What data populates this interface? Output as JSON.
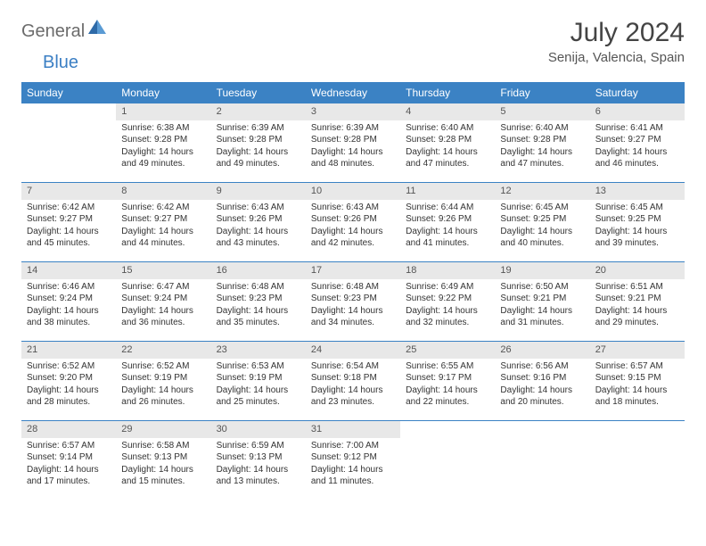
{
  "logo": {
    "part1": "General",
    "part2": "Blue"
  },
  "title": "July 2024",
  "location": "Senija, Valencia, Spain",
  "colors": {
    "header_bg": "#3b82c4",
    "header_fg": "#ffffff",
    "daynum_bg": "#e8e8e8",
    "border": "#3b82c4",
    "text": "#333333",
    "title_color": "#444444"
  },
  "day_headers": [
    "Sunday",
    "Monday",
    "Tuesday",
    "Wednesday",
    "Thursday",
    "Friday",
    "Saturday"
  ],
  "weeks": [
    [
      {
        "num": "",
        "lines": []
      },
      {
        "num": "1",
        "lines": [
          "Sunrise: 6:38 AM",
          "Sunset: 9:28 PM",
          "Daylight: 14 hours",
          "and 49 minutes."
        ]
      },
      {
        "num": "2",
        "lines": [
          "Sunrise: 6:39 AM",
          "Sunset: 9:28 PM",
          "Daylight: 14 hours",
          "and 49 minutes."
        ]
      },
      {
        "num": "3",
        "lines": [
          "Sunrise: 6:39 AM",
          "Sunset: 9:28 PM",
          "Daylight: 14 hours",
          "and 48 minutes."
        ]
      },
      {
        "num": "4",
        "lines": [
          "Sunrise: 6:40 AM",
          "Sunset: 9:28 PM",
          "Daylight: 14 hours",
          "and 47 minutes."
        ]
      },
      {
        "num": "5",
        "lines": [
          "Sunrise: 6:40 AM",
          "Sunset: 9:28 PM",
          "Daylight: 14 hours",
          "and 47 minutes."
        ]
      },
      {
        "num": "6",
        "lines": [
          "Sunrise: 6:41 AM",
          "Sunset: 9:27 PM",
          "Daylight: 14 hours",
          "and 46 minutes."
        ]
      }
    ],
    [
      {
        "num": "7",
        "lines": [
          "Sunrise: 6:42 AM",
          "Sunset: 9:27 PM",
          "Daylight: 14 hours",
          "and 45 minutes."
        ]
      },
      {
        "num": "8",
        "lines": [
          "Sunrise: 6:42 AM",
          "Sunset: 9:27 PM",
          "Daylight: 14 hours",
          "and 44 minutes."
        ]
      },
      {
        "num": "9",
        "lines": [
          "Sunrise: 6:43 AM",
          "Sunset: 9:26 PM",
          "Daylight: 14 hours",
          "and 43 minutes."
        ]
      },
      {
        "num": "10",
        "lines": [
          "Sunrise: 6:43 AM",
          "Sunset: 9:26 PM",
          "Daylight: 14 hours",
          "and 42 minutes."
        ]
      },
      {
        "num": "11",
        "lines": [
          "Sunrise: 6:44 AM",
          "Sunset: 9:26 PM",
          "Daylight: 14 hours",
          "and 41 minutes."
        ]
      },
      {
        "num": "12",
        "lines": [
          "Sunrise: 6:45 AM",
          "Sunset: 9:25 PM",
          "Daylight: 14 hours",
          "and 40 minutes."
        ]
      },
      {
        "num": "13",
        "lines": [
          "Sunrise: 6:45 AM",
          "Sunset: 9:25 PM",
          "Daylight: 14 hours",
          "and 39 minutes."
        ]
      }
    ],
    [
      {
        "num": "14",
        "lines": [
          "Sunrise: 6:46 AM",
          "Sunset: 9:24 PM",
          "Daylight: 14 hours",
          "and 38 minutes."
        ]
      },
      {
        "num": "15",
        "lines": [
          "Sunrise: 6:47 AM",
          "Sunset: 9:24 PM",
          "Daylight: 14 hours",
          "and 36 minutes."
        ]
      },
      {
        "num": "16",
        "lines": [
          "Sunrise: 6:48 AM",
          "Sunset: 9:23 PM",
          "Daylight: 14 hours",
          "and 35 minutes."
        ]
      },
      {
        "num": "17",
        "lines": [
          "Sunrise: 6:48 AM",
          "Sunset: 9:23 PM",
          "Daylight: 14 hours",
          "and 34 minutes."
        ]
      },
      {
        "num": "18",
        "lines": [
          "Sunrise: 6:49 AM",
          "Sunset: 9:22 PM",
          "Daylight: 14 hours",
          "and 32 minutes."
        ]
      },
      {
        "num": "19",
        "lines": [
          "Sunrise: 6:50 AM",
          "Sunset: 9:21 PM",
          "Daylight: 14 hours",
          "and 31 minutes."
        ]
      },
      {
        "num": "20",
        "lines": [
          "Sunrise: 6:51 AM",
          "Sunset: 9:21 PM",
          "Daylight: 14 hours",
          "and 29 minutes."
        ]
      }
    ],
    [
      {
        "num": "21",
        "lines": [
          "Sunrise: 6:52 AM",
          "Sunset: 9:20 PM",
          "Daylight: 14 hours",
          "and 28 minutes."
        ]
      },
      {
        "num": "22",
        "lines": [
          "Sunrise: 6:52 AM",
          "Sunset: 9:19 PM",
          "Daylight: 14 hours",
          "and 26 minutes."
        ]
      },
      {
        "num": "23",
        "lines": [
          "Sunrise: 6:53 AM",
          "Sunset: 9:19 PM",
          "Daylight: 14 hours",
          "and 25 minutes."
        ]
      },
      {
        "num": "24",
        "lines": [
          "Sunrise: 6:54 AM",
          "Sunset: 9:18 PM",
          "Daylight: 14 hours",
          "and 23 minutes."
        ]
      },
      {
        "num": "25",
        "lines": [
          "Sunrise: 6:55 AM",
          "Sunset: 9:17 PM",
          "Daylight: 14 hours",
          "and 22 minutes."
        ]
      },
      {
        "num": "26",
        "lines": [
          "Sunrise: 6:56 AM",
          "Sunset: 9:16 PM",
          "Daylight: 14 hours",
          "and 20 minutes."
        ]
      },
      {
        "num": "27",
        "lines": [
          "Sunrise: 6:57 AM",
          "Sunset: 9:15 PM",
          "Daylight: 14 hours",
          "and 18 minutes."
        ]
      }
    ],
    [
      {
        "num": "28",
        "lines": [
          "Sunrise: 6:57 AM",
          "Sunset: 9:14 PM",
          "Daylight: 14 hours",
          "and 17 minutes."
        ]
      },
      {
        "num": "29",
        "lines": [
          "Sunrise: 6:58 AM",
          "Sunset: 9:13 PM",
          "Daylight: 14 hours",
          "and 15 minutes."
        ]
      },
      {
        "num": "30",
        "lines": [
          "Sunrise: 6:59 AM",
          "Sunset: 9:13 PM",
          "Daylight: 14 hours",
          "and 13 minutes."
        ]
      },
      {
        "num": "31",
        "lines": [
          "Sunrise: 7:00 AM",
          "Sunset: 9:12 PM",
          "Daylight: 14 hours",
          "and 11 minutes."
        ]
      },
      {
        "num": "",
        "lines": []
      },
      {
        "num": "",
        "lines": []
      },
      {
        "num": "",
        "lines": []
      }
    ]
  ]
}
